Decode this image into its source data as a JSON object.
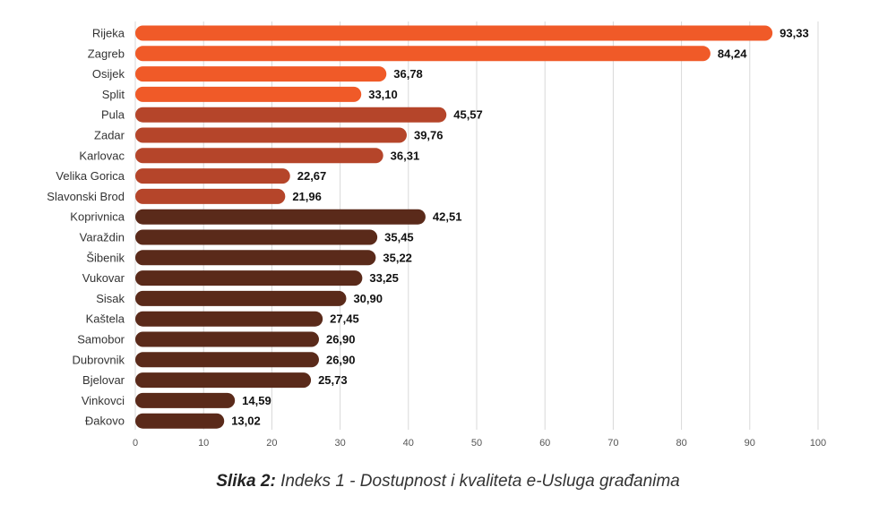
{
  "chart_data": {
    "type": "bar",
    "orientation": "horizontal",
    "categories": [
      "Rijeka",
      "Zagreb",
      "Osijek",
      "Split",
      "Pula",
      "Zadar",
      "Karlovac",
      "Velika Gorica",
      "Slavonski Brod",
      "Koprivnica",
      "Varaždin",
      "Šibenik",
      "Vukovar",
      "Sisak",
      "Kaštela",
      "Samobor",
      "Dubrovnik",
      "Bjelovar",
      "Vinkovci",
      "Đakovo"
    ],
    "values": [
      93.33,
      84.24,
      36.78,
      33.1,
      45.57,
      39.76,
      36.31,
      22.67,
      21.96,
      42.51,
      35.45,
      35.22,
      33.25,
      30.9,
      27.45,
      26.9,
      26.9,
      25.73,
      14.59,
      13.02
    ],
    "value_labels": [
      "93,33",
      "84,24",
      "36,78",
      "33,10",
      "45,57",
      "39,76",
      "36,31",
      "22,67",
      "21,96",
      "42,51",
      "35,45",
      "35,22",
      "33,25",
      "30,90",
      "27,45",
      "26,90",
      "26,90",
      "25,73",
      "14,59",
      "13,02"
    ],
    "groups": [
      0,
      0,
      0,
      0,
      1,
      1,
      1,
      1,
      1,
      2,
      2,
      2,
      2,
      2,
      2,
      2,
      2,
      2,
      2,
      2
    ],
    "group_colors": [
      "#f05a28",
      "#b5452a",
      "#5a2a1a"
    ],
    "xlim": [
      0,
      100
    ],
    "xticks": [
      0,
      10,
      20,
      30,
      40,
      50,
      60,
      70,
      80,
      90,
      100
    ],
    "grid": true,
    "title": "",
    "xlabel": "",
    "ylabel": ""
  },
  "caption": {
    "bold": "Slika 2:",
    "text": " Indeks 1 - Dostupnost i kvaliteta e-Usluga građanima"
  }
}
